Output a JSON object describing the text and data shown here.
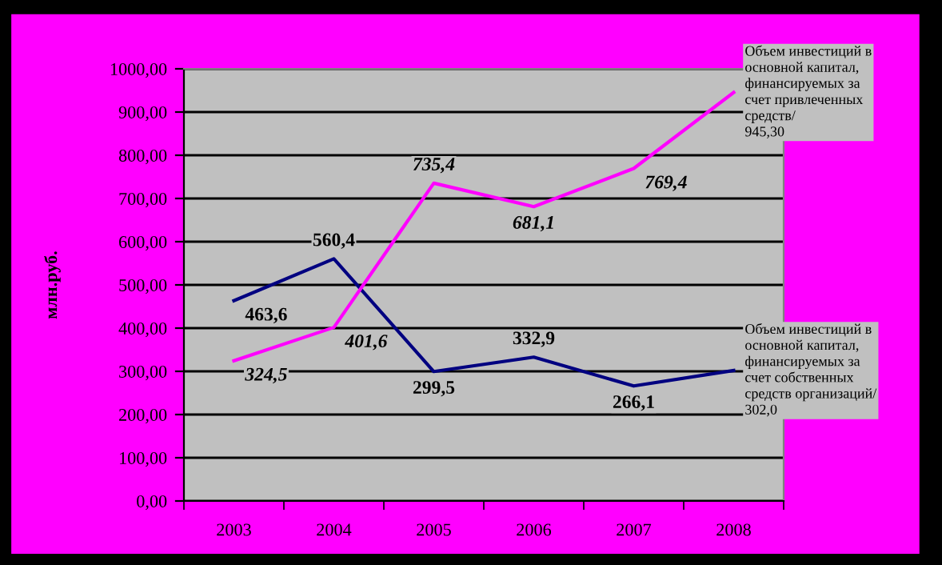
{
  "chart_data": {
    "type": "line",
    "ylabel": "млн.руб.",
    "categories": [
      "2003",
      "2004",
      "2005",
      "2006",
      "2007",
      "2008"
    ],
    "series": [
      {
        "color": "#000080",
        "values": [
          463.6,
          560.4,
          299.5,
          332.9,
          266.1,
          302.0
        ],
        "value_labels": [
          "463,6",
          "560,4",
          "299,5",
          "332,9",
          "266,1",
          "Объем инвестиций в\nосновной капитал,\nфинансируемых за\nсчет собственных\nсредств организаций/\n302,0"
        ]
      },
      {
        "color": "#ff00ff",
        "values": [
          324.5,
          401.6,
          735.4,
          681.1,
          769.4,
          945.3
        ],
        "value_labels": [
          "324,5",
          "401,6",
          "735,4",
          "681,1",
          "769,4",
          "Объем инвестиций в\nосновной капитал,\nфинансируемых за\nсчет привлеченных\nсредств/\n945,30"
        ]
      }
    ],
    "ylim": [
      0,
      1000
    ],
    "yticks": [
      {
        "value": 0,
        "label": "0,00"
      },
      {
        "value": 100,
        "label": "100,00"
      },
      {
        "value": 200,
        "label": "200,00"
      },
      {
        "value": 300,
        "label": "300,00"
      },
      {
        "value": 400,
        "label": "400,00"
      },
      {
        "value": 500,
        "label": "500,00"
      },
      {
        "value": 600,
        "label": "600,00"
      },
      {
        "value": 700,
        "label": "700,00"
      },
      {
        "value": 800,
        "label": "800,00"
      },
      {
        "value": 900,
        "label": "900,00"
      },
      {
        "value": 1000,
        "label": "1000,00"
      }
    ],
    "grid": "y",
    "legend": false,
    "marker": "none",
    "line_style": "solid"
  }
}
